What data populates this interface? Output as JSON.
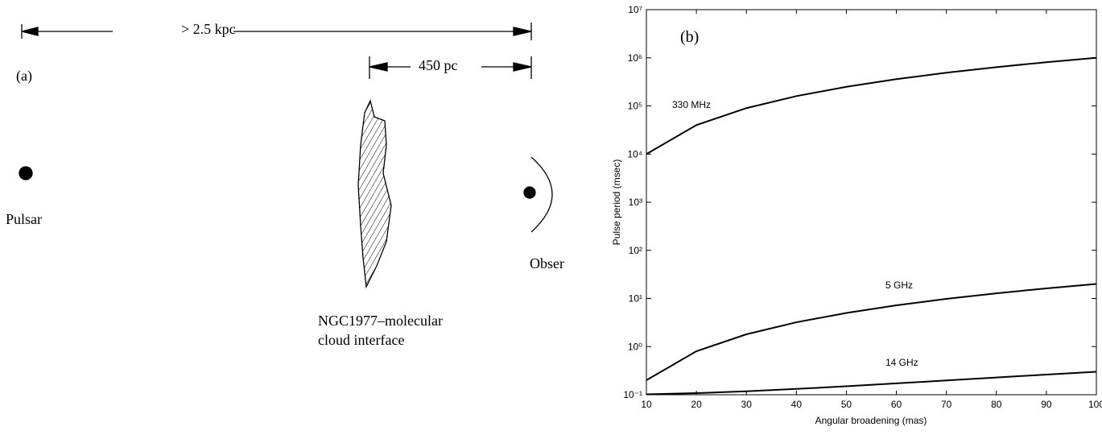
{
  "diagram": {
    "panel_label": "(a)",
    "distance_far": "> 2.5 kpc",
    "distance_near": "450 pc",
    "pulsar": "Pulsar",
    "observer": "Obser",
    "cloud_line1": "NGC1977–molecular",
    "cloud_line2": "cloud interface"
  },
  "chart_data": {
    "type": "line",
    "annotation": "(b)",
    "x_label": "Angular broadening (mas)",
    "y_label": "Pulse period (msec)",
    "x": [
      10,
      20,
      30,
      40,
      50,
      60,
      70,
      80,
      90,
      100
    ],
    "series": [
      {
        "name": "330 MHz",
        "color": "#000000",
        "values": [
          10000,
          40000,
          90000,
          160000,
          250000,
          360000,
          490000,
          640000,
          810000,
          1000000
        ]
      },
      {
        "name": "5 GHz",
        "color": "#000000",
        "values": [
          0.2,
          0.8,
          1.8,
          3.2,
          5,
          7.2,
          9.8,
          12.8,
          16.2,
          20
        ]
      },
      {
        "name": "14 GHz",
        "color": "#000000",
        "values": [
          0.102,
          0.108,
          0.118,
          0.132,
          0.15,
          0.172,
          0.198,
          0.228,
          0.262,
          0.3
        ]
      }
    ],
    "xlim": [
      10,
      100
    ],
    "xticks": [
      10,
      20,
      30,
      40,
      50,
      60,
      70,
      80,
      90,
      100
    ],
    "ylim": [
      0.1,
      10000000
    ],
    "ylog": true,
    "yticks": [
      {
        "value": 0.1,
        "label": "10⁻¹"
      },
      {
        "value": 1,
        "label": "10⁰"
      },
      {
        "value": 10,
        "label": "10¹"
      },
      {
        "value": 100,
        "label": "10²"
      },
      {
        "value": 1000,
        "label": "10³"
      },
      {
        "value": 10000,
        "label": "10⁴"
      },
      {
        "value": 100000,
        "label": "10⁵"
      },
      {
        "value": 1000000,
        "label": "10⁶"
      },
      {
        "value": 10000000,
        "label": "10⁷"
      }
    ],
    "grid": false
  }
}
